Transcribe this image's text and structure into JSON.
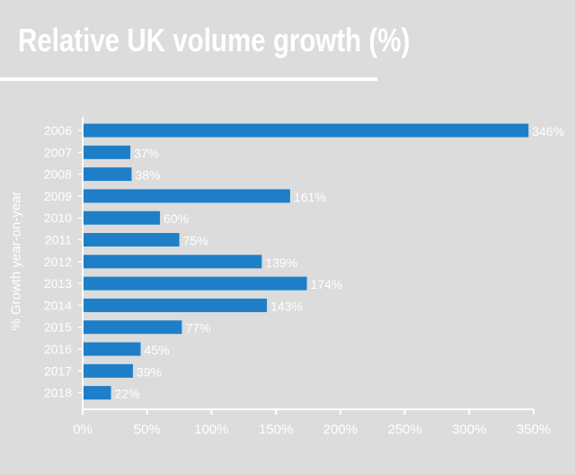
{
  "chart_data": {
    "type": "bar",
    "orientation": "horizontal",
    "title": "Relative UK volume growth (%)",
    "xlabel": "",
    "ylabel": "% Growth year-on-year",
    "categories": [
      "2006",
      "2007",
      "2008",
      "2009",
      "2010",
      "2011",
      "2012",
      "2013",
      "2014",
      "2015",
      "2016",
      "2017",
      "2018"
    ],
    "values": [
      346,
      37,
      38,
      161,
      60,
      75,
      139,
      174,
      143,
      77,
      45,
      39,
      22
    ],
    "value_labels": [
      "346%",
      "37%",
      "38%",
      "161%",
      "60%",
      "75%",
      "139%",
      "174%",
      "143%",
      "77%",
      "45%",
      "39%",
      "22%"
    ],
    "xlim": [
      0,
      350
    ],
    "xticks": [
      0,
      50,
      100,
      150,
      200,
      250,
      300,
      350
    ],
    "xtick_labels": [
      "0%",
      "50%",
      "100%",
      "150%",
      "200%",
      "250%",
      "300%",
      "350%"
    ],
    "grid": false,
    "legend": "none",
    "colors": {
      "bar": "#1e7fc8",
      "text": "#ffffff",
      "background": "#dcdcdc"
    }
  }
}
